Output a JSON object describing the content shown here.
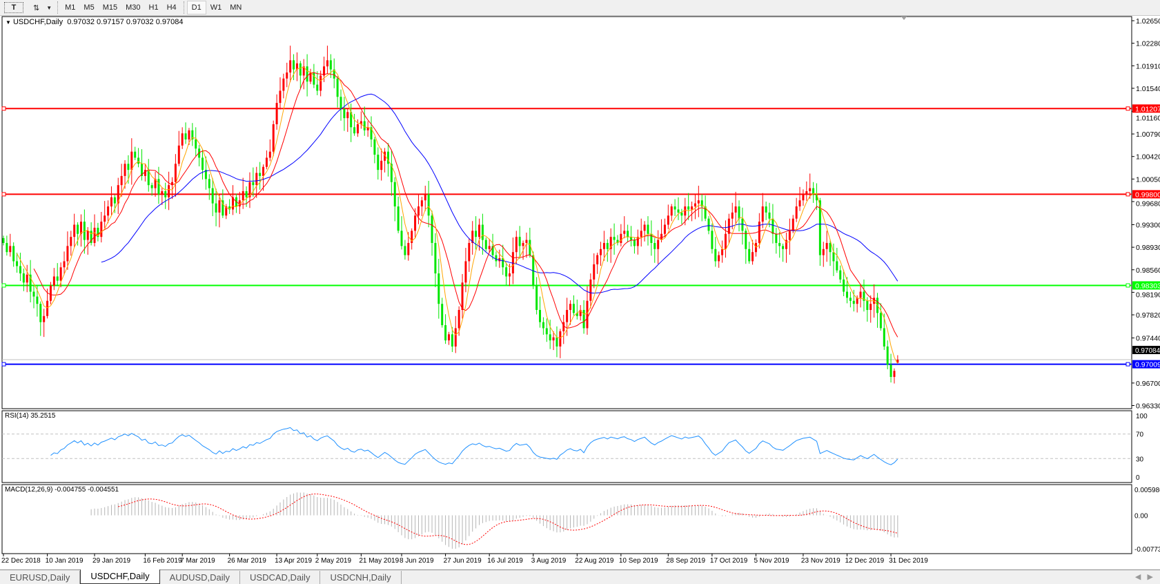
{
  "toolbar": {
    "items": [
      {
        "icon": "text-tool-icon",
        "label": "T"
      },
      {
        "icon": "arrows-dropdown-icon",
        "label": "⇅"
      }
    ],
    "timeframes": [
      "M1",
      "M5",
      "M15",
      "M30",
      "H1",
      "H4",
      "D1",
      "W1",
      "MN"
    ],
    "active": "D1"
  },
  "header": {
    "symbol": "USDCHF,Daily",
    "ohlc": "0.97032 0.97157 0.97032 0.97084"
  },
  "rsi": {
    "label": "RSI(14) 35.2515",
    "ticks": [
      "100",
      "70",
      "30",
      "0"
    ]
  },
  "macd": {
    "label": "MACD(12,26,9) -0.004755 -0.004551",
    "ticks": [
      "0.005986",
      "0.00",
      "-0.007737"
    ]
  },
  "colors": {
    "up": "#ff0000",
    "down": "#00e600",
    "ma_fast": "#ffa500",
    "ma_mid": "#ff0000",
    "ma_slow": "#0000ff",
    "rsi": "#1e90ff",
    "macd_hist": "#b4b4b4",
    "macd_signal": "#ff0000"
  },
  "tabs": [
    {
      "label": "EURUSD,Daily"
    },
    {
      "label": "USDCHF,Daily",
      "active": true
    },
    {
      "label": "AUDUSD,Daily"
    },
    {
      "label": "USDCAD,Daily"
    },
    {
      "label": "USDCNH,Daily"
    }
  ],
  "chart_data": {
    "type": "candlestick",
    "symbol": "USDCHF",
    "timeframe": "Daily",
    "ylim": [
      0.9633,
      1.0265
    ],
    "price_ticks": [
      "1.02650",
      "1.02280",
      "1.01910",
      "1.01540",
      "1.01160",
      "1.00790",
      "1.00420",
      "1.00050",
      "0.99680",
      "0.99300",
      "0.98930",
      "0.98560",
      "0.98190",
      "0.97820",
      "0.97440",
      "0.96700",
      "0.96330"
    ],
    "hlines": [
      {
        "value": 1.01207,
        "label": "1.01207",
        "color": "#ff0000"
      },
      {
        "value": 0.998,
        "label": "0.99800",
        "color": "#ff0000"
      },
      {
        "value": 0.98303,
        "label": "0.98303",
        "color": "#00ff00"
      },
      {
        "value": 0.97009,
        "label": "0.97009",
        "color": "#0000ff"
      }
    ],
    "bid": {
      "value": 0.97084,
      "label": "0.97084"
    },
    "last_bar": {
      "open": 0.97032,
      "high": 0.97157,
      "low": 0.97032,
      "close": 0.97084
    },
    "xticks": [
      {
        "label": "22 Dec 2018",
        "bar": 0
      },
      {
        "label": "10 Jan 2019",
        "bar": 13
      },
      {
        "label": "29 Jan 2019",
        "bar": 27
      },
      {
        "label": "16 Feb 2019",
        "bar": 42
      },
      {
        "label": "7 Mar 2019",
        "bar": 53
      },
      {
        "label": "26 Mar 2019",
        "bar": 67
      },
      {
        "label": "13 Apr 2019",
        "bar": 81
      },
      {
        "label": "2 May 2019",
        "bar": 93
      },
      {
        "label": "21 May 2019",
        "bar": 106
      },
      {
        "label": "8 Jun 2019",
        "bar": 118
      },
      {
        "label": "27 Jun 2019",
        "bar": 131
      },
      {
        "label": "16 Jul 2019",
        "bar": 144
      },
      {
        "label": "3 Aug 2019",
        "bar": 157
      },
      {
        "label": "22 Aug 2019",
        "bar": 170
      },
      {
        "label": "10 Sep 2019",
        "bar": 183
      },
      {
        "label": "28 Sep 2019",
        "bar": 197
      },
      {
        "label": "17 Oct 2019",
        "bar": 210
      },
      {
        "label": "5 Nov 2019",
        "bar": 223
      },
      {
        "label": "23 Nov 2019",
        "bar": 237
      },
      {
        "label": "12 Dec 2019",
        "bar": 250
      },
      {
        "label": "31 Dec 2019",
        "bar": 263
      }
    ],
    "close": [
      0.99,
      0.9885,
      0.9895,
      0.987,
      0.9862,
      0.985,
      0.9835,
      0.9848,
      0.982,
      0.9812,
      0.98,
      0.977,
      0.978,
      0.9805,
      0.983,
      0.9845,
      0.9838,
      0.986,
      0.987,
      0.9895,
      0.991,
      0.993,
      0.9915,
      0.9935,
      0.9905,
      0.992,
      0.99,
      0.9925,
      0.991,
      0.9935,
      0.9945,
      0.996,
      0.9975,
      0.9965,
      0.9995,
      1.001,
      1.003,
      1.002,
      1.005,
      1.004,
      1.003,
      1.001,
      1.002,
      0.9995,
      0.999,
      1.0005,
      0.998,
      0.9985,
      0.9975,
      0.9995,
      1.0,
      1.003,
      1.006,
      1.008,
      1.007,
      1.0085,
      1.007,
      1.0055,
      1.004,
      1.002,
      1.0005,
      0.999,
      0.9965,
      0.995,
      0.997,
      0.9945,
      0.996,
      0.9955,
      0.9975,
      0.996,
      0.997,
      0.9985,
      0.9975,
      1.0,
      0.9995,
      1.0015,
      1.001,
      1.0025,
      1.004,
      1.005,
      1.0095,
      1.013,
      1.015,
      1.017,
      1.018,
      1.02,
      1.0185,
      1.0195,
      1.0175,
      1.019,
      1.0165,
      1.018,
      1.016,
      1.015,
      1.0175,
      1.019,
      1.02,
      1.0185,
      1.017,
      1.014,
      1.012,
      1.0105,
      1.0115,
      1.009,
      1.008,
      1.0095,
      1.01,
      1.0085,
      1.009,
      1.007,
      1.0045,
      1.002,
      1.0035,
      1.005,
      1.003,
      1.0,
      0.996,
      0.992,
      0.9895,
      0.988,
      0.99,
      0.992,
      0.9945,
      0.996,
      0.997,
      0.998,
      0.9945,
      0.99,
      0.985,
      0.98,
      0.9765,
      0.974,
      0.975,
      0.973,
      0.976,
      0.979,
      0.9835,
      0.987,
      0.99,
      0.992,
      0.991,
      0.993,
      0.9905,
      0.989,
      0.9895,
      0.988,
      0.987,
      0.9875,
      0.986,
      0.9845,
      0.985,
      0.9885,
      0.991,
      0.9895,
      0.99,
      0.9905,
      0.988,
      0.983,
      0.979,
      0.977,
      0.976,
      0.975,
      0.974,
      0.9745,
      0.973,
      0.9755,
      0.977,
      0.979,
      0.98,
      0.9785,
      0.978,
      0.979,
      0.976,
      0.9805,
      0.984,
      0.9865,
      0.988,
      0.989,
      0.99,
      0.989,
      0.991,
      0.9905,
      0.99,
      0.9915,
      0.992,
      0.991,
      0.9905,
      0.9895,
      0.991,
      0.992,
      0.993,
      0.9915,
      0.99,
      0.989,
      0.9905,
      0.9915,
      0.993,
      0.9945,
      0.996,
      0.9955,
      0.995,
      0.9945,
      0.996,
      0.9955,
      0.996,
      0.9965,
      0.997,
      0.996,
      0.994,
      0.992,
      0.989,
      0.987,
      0.988,
      0.989,
      0.9915,
      0.994,
      0.995,
      0.996,
      0.994,
      0.992,
      0.989,
      0.987,
      0.9885,
      0.99,
      0.9935,
      0.996,
      0.995,
      0.994,
      0.9915,
      0.99,
      0.9895,
      0.989,
      0.9905,
      0.992,
      0.994,
      0.996,
      0.997,
      0.998,
      0.9985,
      0.999,
      0.998,
      0.997,
      0.988,
      0.989,
      0.99,
      0.9885,
      0.987,
      0.9855,
      0.984,
      0.982,
      0.981,
      0.9805,
      0.98,
      0.981,
      0.982,
      0.9805,
      0.979,
      0.98,
      0.981,
      0.9785,
      0.976,
      0.973,
      0.97,
      0.968,
      0.969,
      0.97084
    ]
  }
}
